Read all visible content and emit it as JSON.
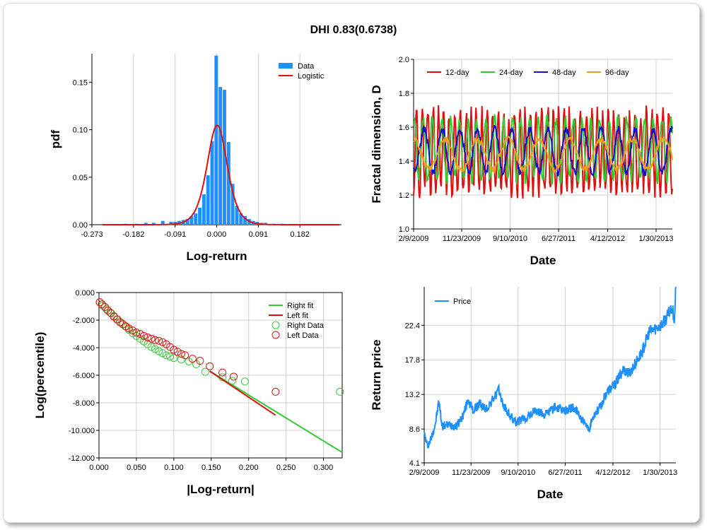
{
  "title": "DHI 0.83(0.6738)",
  "chart_data": [
    {
      "id": "hist",
      "type": "bar",
      "xlabel": "Log-return",
      "ylabel": "pdf",
      "xlim": [
        -0.273,
        0.273
      ],
      "ylim": [
        0,
        0.18
      ],
      "xticks": [
        -0.273,
        -0.182,
        -0.091,
        0.0,
        0.091,
        0.182
      ],
      "xtick_labels": [
        "-0.273",
        "-0.182",
        "-0.091",
        "0.000",
        "0.091",
        "0.182"
      ],
      "yticks": [
        0.0,
        0.05,
        0.1,
        0.15
      ],
      "ytick_labels": [
        "0.00",
        "0.05",
        "0.10",
        "0.15"
      ],
      "legend": [
        "Data",
        "Logistic"
      ],
      "colors": {
        "bars": "#1e90ff",
        "fit": "#e01010"
      },
      "bin_width": 0.0092,
      "bins": [
        {
          "x": -0.2,
          "y": 0.001
        },
        {
          "x": -0.175,
          "y": 0.001
        },
        {
          "x": -0.155,
          "y": 0.002
        },
        {
          "x": -0.138,
          "y": 0.002
        },
        {
          "x": -0.118,
          "y": 0.004
        },
        {
          "x": -0.1,
          "y": 0.003
        },
        {
          "x": -0.091,
          "y": 0.003
        },
        {
          "x": -0.082,
          "y": 0.004
        },
        {
          "x": -0.073,
          "y": 0.005
        },
        {
          "x": -0.064,
          "y": 0.006
        },
        {
          "x": -0.055,
          "y": 0.009
        },
        {
          "x": -0.046,
          "y": 0.012
        },
        {
          "x": -0.037,
          "y": 0.018
        },
        {
          "x": -0.028,
          "y": 0.032
        },
        {
          "x": -0.019,
          "y": 0.052
        },
        {
          "x": -0.01,
          "y": 0.088
        },
        {
          "x": -0.001,
          "y": 0.178
        },
        {
          "x": 0.008,
          "y": 0.145
        },
        {
          "x": 0.017,
          "y": 0.142
        },
        {
          "x": 0.026,
          "y": 0.087
        },
        {
          "x": 0.035,
          "y": 0.043
        },
        {
          "x": 0.044,
          "y": 0.02
        },
        {
          "x": 0.053,
          "y": 0.012
        },
        {
          "x": 0.062,
          "y": 0.009
        },
        {
          "x": 0.071,
          "y": 0.006
        },
        {
          "x": 0.08,
          "y": 0.004
        },
        {
          "x": 0.089,
          "y": 0.003
        },
        {
          "x": 0.098,
          "y": 0.002
        },
        {
          "x": 0.107,
          "y": 0.002
        },
        {
          "x": 0.125,
          "y": 0.001
        },
        {
          "x": 0.143,
          "y": 0.001
        }
      ],
      "fit": {
        "loc": 0.001,
        "scale": 0.0148
      }
    },
    {
      "id": "fractal",
      "type": "line",
      "xlabel": "Date",
      "ylabel": "Fractal dimension, D",
      "xlim": [
        0,
        1544
      ],
      "ylim": [
        1.0,
        2.0
      ],
      "xticks": [
        0,
        287,
        576,
        865,
        1158,
        1447
      ],
      "xtick_labels": [
        "2/9/2009",
        "11/23/2009",
        "9/10/2010",
        "6/27/2011",
        "4/12/2012",
        "1/30/2013"
      ],
      "yticks": [
        1.0,
        1.2,
        1.4,
        1.6,
        1.8,
        2.0
      ],
      "ytick_labels": [
        "1.0",
        "1.2",
        "1.4",
        "1.6",
        "1.8",
        "2.0"
      ],
      "series": [
        {
          "name": "12-day",
          "color": "#e01010",
          "mean": 1.45,
          "amp": 0.24,
          "period": 34,
          "seed": 11
        },
        {
          "name": "24-day",
          "color": "#33cc33",
          "mean": 1.47,
          "amp": 0.18,
          "period": 55,
          "seed": 23
        },
        {
          "name": "48-day",
          "color": "#1010cc",
          "mean": 1.46,
          "amp": 0.13,
          "period": 110,
          "seed": 37
        },
        {
          "name": "96-day",
          "color": "#f0a020",
          "mean": 1.44,
          "amp": 0.09,
          "period": 190,
          "seed": 51
        }
      ]
    },
    {
      "id": "tail",
      "type": "scatter",
      "xlabel": "|Log-return|",
      "ylabel": "Log(percentile)",
      "xlim": [
        0,
        0.325
      ],
      "ylim": [
        -12.0,
        0.0
      ],
      "xticks": [
        0.0,
        0.05,
        0.1,
        0.15,
        0.2,
        0.25,
        0.3
      ],
      "xtick_labels": [
        "0.000",
        "0.050",
        "0.100",
        "0.150",
        "0.200",
        "0.250",
        "0.300"
      ],
      "yticks": [
        0,
        -2,
        -4,
        -6,
        -8,
        -10,
        -12
      ],
      "ytick_labels": [
        "0.000",
        "-2.000",
        "-4.000",
        "-6.000",
        "-8.000",
        "-10.000",
        "-12.000"
      ],
      "legend": [
        "Right fit",
        "Left fit",
        "Right Data",
        "Left Data"
      ],
      "colors": {
        "right": "#33cc33",
        "left": "#e01010"
      },
      "right_fit": [
        [
          0.148,
          -5.7
        ],
        [
          0.325,
          -11.6
        ]
      ],
      "left_fit": [
        [
          0.148,
          -5.7
        ],
        [
          0.236,
          -8.9
        ]
      ],
      "right_data": [
        [
          0.001,
          -0.7
        ],
        [
          0.005,
          -0.95
        ],
        [
          0.01,
          -1.2
        ],
        [
          0.015,
          -1.45
        ],
        [
          0.02,
          -1.7
        ],
        [
          0.025,
          -1.95
        ],
        [
          0.03,
          -2.2
        ],
        [
          0.035,
          -2.45
        ],
        [
          0.04,
          -2.7
        ],
        [
          0.045,
          -2.95
        ],
        [
          0.05,
          -3.15
        ],
        [
          0.055,
          -3.35
        ],
        [
          0.06,
          -3.55
        ],
        [
          0.065,
          -3.75
        ],
        [
          0.07,
          -3.95
        ],
        [
          0.075,
          -4.1
        ],
        [
          0.08,
          -4.25
        ],
        [
          0.085,
          -4.4
        ],
        [
          0.09,
          -4.55
        ],
        [
          0.095,
          -4.65
        ],
        [
          0.1,
          -4.75
        ],
        [
          0.11,
          -4.85
        ],
        [
          0.12,
          -5.0
        ],
        [
          0.13,
          -5.2
        ],
        [
          0.142,
          -5.75
        ],
        [
          0.165,
          -6.15
        ],
        [
          0.178,
          -6.4
        ],
        [
          0.195,
          -6.45
        ],
        [
          0.322,
          -7.2
        ]
      ],
      "left_data": [
        [
          0.001,
          -0.7
        ],
        [
          0.004,
          -0.85
        ],
        [
          0.008,
          -1.05
        ],
        [
          0.012,
          -1.3
        ],
        [
          0.016,
          -1.5
        ],
        [
          0.02,
          -1.75
        ],
        [
          0.024,
          -1.95
        ],
        [
          0.028,
          -2.15
        ],
        [
          0.032,
          -2.3
        ],
        [
          0.036,
          -2.45
        ],
        [
          0.04,
          -2.6
        ],
        [
          0.045,
          -2.75
        ],
        [
          0.05,
          -2.9
        ],
        [
          0.055,
          -3.0
        ],
        [
          0.06,
          -3.15
        ],
        [
          0.065,
          -3.25
        ],
        [
          0.07,
          -3.35
        ],
        [
          0.075,
          -3.45
        ],
        [
          0.08,
          -3.5
        ],
        [
          0.085,
          -3.6
        ],
        [
          0.09,
          -3.75
        ],
        [
          0.095,
          -3.95
        ],
        [
          0.1,
          -4.15
        ],
        [
          0.105,
          -4.3
        ],
        [
          0.11,
          -4.45
        ],
        [
          0.115,
          -4.55
        ],
        [
          0.125,
          -4.8
        ],
        [
          0.135,
          -4.95
        ],
        [
          0.148,
          -5.35
        ],
        [
          0.165,
          -5.8
        ],
        [
          0.18,
          -6.1
        ],
        [
          0.236,
          -7.2
        ]
      ]
    },
    {
      "id": "price",
      "type": "line",
      "xlabel": "Date",
      "ylabel": "Return price",
      "xlim": [
        0,
        1544
      ],
      "ylim": [
        4.1,
        27.5
      ],
      "xticks": [
        0,
        287,
        576,
        865,
        1158,
        1447
      ],
      "xtick_labels": [
        "2/9/2009",
        "11/23/2009",
        "9/10/2010",
        "6/27/2011",
        "4/12/2012",
        "1/30/2013"
      ],
      "yticks": [
        4.1,
        8.6,
        13.2,
        17.8,
        22.4
      ],
      "ytick_labels": [
        "4.1",
        "8.6",
        "13.2",
        "17.8",
        "22.4"
      ],
      "legend": [
        "Price"
      ],
      "color": "#1e90ff",
      "anchors": [
        [
          0,
          8.0
        ],
        [
          20,
          6.3
        ],
        [
          45,
          7.5
        ],
        [
          70,
          9.5
        ],
        [
          90,
          12.3
        ],
        [
          110,
          9.0
        ],
        [
          160,
          9.2
        ],
        [
          200,
          9.0
        ],
        [
          240,
          10.5
        ],
        [
          270,
          12.5
        ],
        [
          300,
          11.0
        ],
        [
          340,
          12.0
        ],
        [
          380,
          11.2
        ],
        [
          420,
          12.5
        ],
        [
          460,
          13.8
        ],
        [
          480,
          12.0
        ],
        [
          520,
          10.5
        ],
        [
          560,
          9.5
        ],
        [
          620,
          10.0
        ],
        [
          680,
          11.0
        ],
        [
          740,
          10.5
        ],
        [
          800,
          11.5
        ],
        [
          860,
          11.0
        ],
        [
          910,
          11.5
        ],
        [
          950,
          10.5
        ],
        [
          990,
          9.0
        ],
        [
          1010,
          8.5
        ],
        [
          1040,
          10.5
        ],
        [
          1080,
          11.5
        ],
        [
          1120,
          13.5
        ],
        [
          1170,
          14.5
        ],
        [
          1220,
          16.5
        ],
        [
          1260,
          16.0
        ],
        [
          1300,
          17.5
        ],
        [
          1340,
          19.0
        ],
        [
          1380,
          21.5
        ],
        [
          1420,
          22.0
        ],
        [
          1460,
          22.5
        ],
        [
          1490,
          23.5
        ],
        [
          1520,
          25.0
        ],
        [
          1535,
          23.0
        ],
        [
          1544,
          27.5
        ]
      ]
    }
  ]
}
